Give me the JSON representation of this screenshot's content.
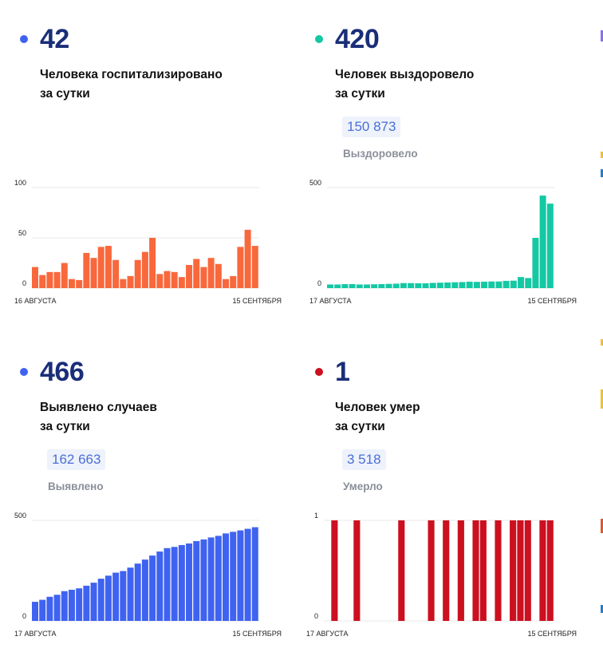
{
  "panels": {
    "hospitalized": {
      "number": "42",
      "line1": "Человека госпитализировано",
      "line2": "за сутки",
      "dot_color": "#3f63f0"
    },
    "recovered": {
      "number": "420",
      "line1": "Человек выздоровело",
      "line2": "за сутки",
      "total": "150 873",
      "total_label": "Выздоровело",
      "dot_color": "#14c8a4"
    },
    "cases": {
      "number": "466",
      "line1": "Выявлено случаев",
      "line2": "за сутки",
      "total": "162 663",
      "total_label": "Выявлено",
      "dot_color": "#3f63f0"
    },
    "deaths": {
      "number": "1",
      "line1": "Человек умер",
      "line2": "за сутки",
      "total": "3 518",
      "total_label": "Умерло",
      "dot_color": "#cc1020"
    }
  },
  "chart_data": [
    {
      "type": "bar",
      "id": "hospitalized",
      "color": "#f9683c",
      "ylim": [
        0,
        100
      ],
      "yticks": [
        0,
        50,
        100
      ],
      "x_start_label": "16 АВГУСТА",
      "x_end_label": "15 СЕНТЯБРЯ",
      "values": [
        21,
        13,
        16,
        16,
        25,
        9,
        8,
        35,
        30,
        41,
        42,
        28,
        9,
        12,
        28,
        36,
        50,
        14,
        17,
        16,
        11,
        23,
        29,
        21,
        30,
        24,
        9,
        12,
        41,
        58,
        42
      ]
    },
    {
      "type": "bar",
      "id": "recovered",
      "color": "#14c8a4",
      "ylim": [
        0,
        500
      ],
      "yticks": [
        0,
        500
      ],
      "x_start_label": "17 АВГУСТА",
      "x_end_label": "15 СЕНТЯБРЯ",
      "values": [
        18,
        18,
        20,
        20,
        18,
        18,
        19,
        20,
        21,
        22,
        25,
        25,
        24,
        24,
        26,
        27,
        28,
        29,
        30,
        32,
        31,
        32,
        33,
        33,
        36,
        37,
        55,
        50,
        250,
        460,
        420
      ]
    },
    {
      "type": "bar",
      "id": "cases",
      "color": "#3f63f0",
      "ylim": [
        0,
        500
      ],
      "yticks": [
        0,
        500
      ],
      "x_start_label": "17 АВГУСТА",
      "x_end_label": "15 СЕНТЯБРЯ",
      "values": [
        95,
        105,
        120,
        130,
        148,
        155,
        162,
        175,
        190,
        210,
        225,
        240,
        248,
        265,
        285,
        305,
        325,
        345,
        362,
        368,
        377,
        385,
        397,
        405,
        415,
        423,
        435,
        443,
        450,
        458,
        466
      ]
    },
    {
      "type": "bar",
      "id": "deaths",
      "color": "#cc1020",
      "ylim": [
        0,
        1
      ],
      "yticks": [
        0,
        1
      ],
      "x_start_label": "17 АВГУСТА",
      "x_end_label": "15 СЕНТЯБРЯ",
      "values": [
        0,
        1,
        0,
        0,
        1,
        0,
        0,
        0,
        0,
        0,
        1,
        0,
        0,
        0,
        1,
        0,
        1,
        0,
        1,
        0,
        1,
        1,
        0,
        1,
        0,
        1,
        1,
        1,
        0,
        1,
        1
      ]
    }
  ]
}
